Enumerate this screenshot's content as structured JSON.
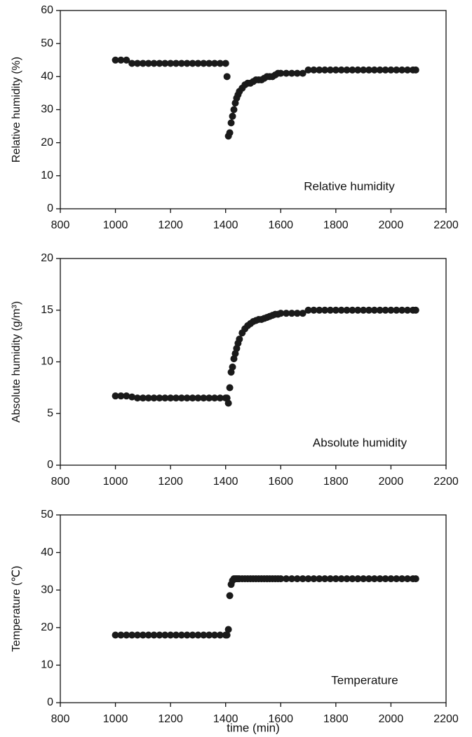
{
  "chart_data": [
    {
      "type": "scatter",
      "ylabel": "Relative humidity (%)",
      "annotation": "Relative humidity",
      "color": "#1a1a1a",
      "xlim": [
        800,
        2200
      ],
      "xticks": [
        800,
        1000,
        1200,
        1400,
        1600,
        1800,
        2000,
        2200
      ],
      "ylim": [
        0,
        60
      ],
      "yticks": [
        0,
        10,
        20,
        30,
        40,
        50,
        60
      ],
      "x": [
        1000,
        1020,
        1040,
        1060,
        1080,
        1100,
        1120,
        1140,
        1160,
        1180,
        1200,
        1220,
        1240,
        1260,
        1280,
        1300,
        1320,
        1340,
        1360,
        1380,
        1400,
        1405,
        1410,
        1415,
        1420,
        1425,
        1430,
        1435,
        1440,
        1445,
        1450,
        1460,
        1470,
        1480,
        1490,
        1500,
        1510,
        1520,
        1530,
        1540,
        1550,
        1560,
        1570,
        1580,
        1590,
        1600,
        1620,
        1640,
        1660,
        1680,
        1700,
        1720,
        1740,
        1760,
        1780,
        1800,
        1820,
        1840,
        1860,
        1880,
        1900,
        1920,
        1940,
        1960,
        1980,
        2000,
        2020,
        2040,
        2060,
        2080,
        2090
      ],
      "values": [
        45,
        45,
        45,
        44,
        44,
        44,
        44,
        44,
        44,
        44,
        44,
        44,
        44,
        44,
        44,
        44,
        44,
        44,
        44,
        44,
        44,
        40,
        22,
        23,
        26,
        28,
        30,
        32,
        33.5,
        34.5,
        35.5,
        36.5,
        37.5,
        38,
        38,
        38.5,
        39,
        39,
        39,
        39.5,
        40,
        40,
        40,
        40.5,
        41,
        41,
        41,
        41,
        41,
        41,
        42,
        42,
        42,
        42,
        42,
        42,
        42,
        42,
        42,
        42,
        42,
        42,
        42,
        42,
        42,
        42,
        42,
        42,
        42,
        42,
        42
      ]
    },
    {
      "type": "scatter",
      "ylabel": "Absolute humidity (g/m³)",
      "annotation": "Absolute humidity",
      "color": "#1a1a1a",
      "xlim": [
        800,
        2200
      ],
      "xticks": [
        800,
        1000,
        1200,
        1400,
        1600,
        1800,
        2000,
        2200
      ],
      "ylim": [
        0,
        20
      ],
      "yticks": [
        0,
        5,
        10,
        15,
        20
      ],
      "x": [
        1000,
        1020,
        1040,
        1060,
        1080,
        1100,
        1120,
        1140,
        1160,
        1180,
        1200,
        1220,
        1240,
        1260,
        1280,
        1300,
        1320,
        1340,
        1360,
        1380,
        1400,
        1405,
        1410,
        1415,
        1420,
        1425,
        1430,
        1435,
        1440,
        1445,
        1450,
        1460,
        1470,
        1480,
        1490,
        1500,
        1510,
        1520,
        1530,
        1540,
        1550,
        1560,
        1570,
        1580,
        1590,
        1600,
        1620,
        1640,
        1660,
        1680,
        1700,
        1720,
        1740,
        1760,
        1780,
        1800,
        1820,
        1840,
        1860,
        1880,
        1900,
        1920,
        1940,
        1960,
        1980,
        2000,
        2020,
        2040,
        2060,
        2080,
        2090
      ],
      "values": [
        6.7,
        6.7,
        6.7,
        6.6,
        6.5,
        6.5,
        6.5,
        6.5,
        6.5,
        6.5,
        6.5,
        6.5,
        6.5,
        6.5,
        6.5,
        6.5,
        6.5,
        6.5,
        6.5,
        6.5,
        6.5,
        6.5,
        6.0,
        7.5,
        9.0,
        9.5,
        10.3,
        10.8,
        11.3,
        11.8,
        12.2,
        12.8,
        13.2,
        13.5,
        13.7,
        13.9,
        14.0,
        14.1,
        14.1,
        14.2,
        14.3,
        14.4,
        14.5,
        14.6,
        14.6,
        14.7,
        14.7,
        14.7,
        14.7,
        14.7,
        15,
        15,
        15,
        15,
        15,
        15,
        15,
        15,
        15,
        15,
        15,
        15,
        15,
        15,
        15,
        15,
        15,
        15,
        15,
        15,
        15
      ]
    },
    {
      "type": "scatter",
      "ylabel": "Temperature (℃)",
      "annotation": "Temperature",
      "xlabel": "time (min)",
      "color": "#1a1a1a",
      "xlim": [
        800,
        2200
      ],
      "xticks": [
        800,
        1000,
        1200,
        1400,
        1600,
        1800,
        2000,
        2200
      ],
      "ylim": [
        0,
        50
      ],
      "yticks": [
        0,
        10,
        20,
        30,
        40,
        50
      ],
      "x": [
        1000,
        1020,
        1040,
        1060,
        1080,
        1100,
        1120,
        1140,
        1160,
        1180,
        1200,
        1220,
        1240,
        1260,
        1280,
        1300,
        1320,
        1340,
        1360,
        1380,
        1400,
        1405,
        1410,
        1415,
        1420,
        1425,
        1430,
        1435,
        1440,
        1445,
        1450,
        1460,
        1470,
        1480,
        1490,
        1500,
        1510,
        1520,
        1530,
        1540,
        1550,
        1560,
        1570,
        1580,
        1590,
        1600,
        1620,
        1640,
        1660,
        1680,
        1700,
        1720,
        1740,
        1760,
        1780,
        1800,
        1820,
        1840,
        1860,
        1880,
        1900,
        1920,
        1940,
        1960,
        1980,
        2000,
        2020,
        2040,
        2060,
        2080,
        2090
      ],
      "values": [
        18,
        18,
        18,
        18,
        18,
        18,
        18,
        18,
        18,
        18,
        18,
        18,
        18,
        18,
        18,
        18,
        18,
        18,
        18,
        18,
        18,
        18,
        19.5,
        28.5,
        31.5,
        32.5,
        33,
        33,
        33,
        33,
        33,
        33,
        33,
        33,
        33,
        33,
        33,
        33,
        33,
        33,
        33,
        33,
        33,
        33,
        33,
        33,
        33,
        33,
        33,
        33,
        33,
        33,
        33,
        33,
        33,
        33,
        33,
        33,
        33,
        33,
        33,
        33,
        33,
        33,
        33,
        33,
        33,
        33,
        33,
        33,
        33
      ]
    }
  ]
}
